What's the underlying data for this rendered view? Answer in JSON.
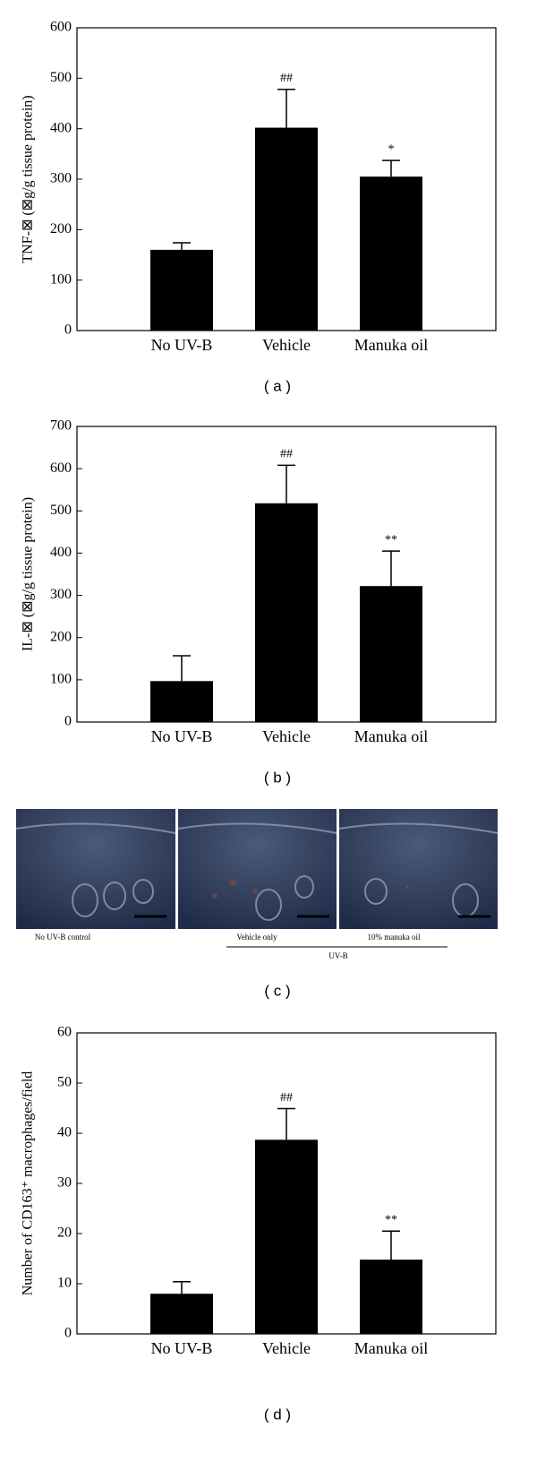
{
  "chart_data": [
    {
      "type": "bar",
      "caption": "( a )",
      "y_label": "TNF-⊠ (⊠g/g tissue protein)",
      "categories": [
        "No UV-B",
        "Vehicle",
        "Manuka oil"
      ],
      "values": [
        160,
        402,
        305
      ],
      "errors": [
        14,
        76,
        32
      ],
      "annotations": [
        null,
        "##",
        "*"
      ],
      "color": "#000000",
      "ylim": [
        0,
        600
      ],
      "yticks": [
        0,
        100,
        200,
        300,
        400,
        500,
        600
      ]
    },
    {
      "type": "bar",
      "caption": "( b )",
      "y_label": "IL-⊠ (⊠g/g tissue protein)",
      "categories": [
        "No UV-B",
        "Vehicle",
        "Manuka oil"
      ],
      "values": [
        97,
        518,
        322
      ],
      "errors": [
        60,
        90,
        83
      ],
      "annotations": [
        null,
        "##",
        "**"
      ],
      "color": "#000000",
      "ylim": [
        0,
        700
      ],
      "yticks": [
        0,
        100,
        200,
        300,
        400,
        500,
        600,
        700
      ]
    },
    {
      "type": "bar",
      "caption": "( d )",
      "y_label": "Number of CD163⁺ macrophages/field",
      "categories": [
        "No UV-B",
        "Vehicle",
        "Manuka oil"
      ],
      "values": [
        8,
        38.7,
        14.8
      ],
      "errors": [
        2.4,
        6.2,
        5.7
      ],
      "annotations": [
        null,
        "##",
        "**"
      ],
      "color": "#000000",
      "ylim": [
        0,
        60
      ],
      "yticks": [
        0,
        10,
        20,
        30,
        40,
        50,
        60
      ]
    }
  ],
  "image_panel": {
    "caption": "( c )",
    "images": [
      "No UV-B control",
      "Vehicle only",
      "10% manuka oil"
    ],
    "group_label": "UV-B"
  }
}
